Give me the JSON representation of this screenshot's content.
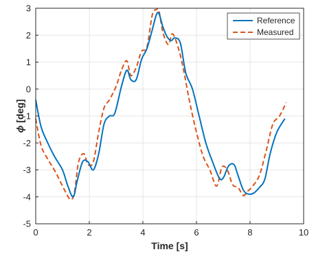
{
  "chart_data": {
    "type": "line",
    "title": "",
    "xlabel": "Time [s]",
    "ylabel_symbol": "ϕ",
    "ylabel_unit": " [deg]",
    "xlim": [
      0,
      10
    ],
    "ylim": [
      -5,
      3
    ],
    "xticks": [
      0,
      2,
      4,
      6,
      8,
      10
    ],
    "yticks": [
      -5,
      -4,
      -3,
      -2,
      -1,
      0,
      1,
      2,
      3
    ],
    "grid": true,
    "legend_position": "top-right",
    "series": [
      {
        "name": "Reference",
        "color": "#0072BD",
        "line_style": "solid",
        "x": [
          0,
          0.2,
          0.45,
          0.7,
          1.0,
          1.2,
          1.4,
          1.55,
          1.75,
          1.95,
          2.15,
          2.35,
          2.55,
          2.75,
          2.95,
          3.2,
          3.4,
          3.55,
          3.75,
          3.95,
          4.15,
          4.35,
          4.5,
          4.6,
          4.75,
          4.9,
          5.05,
          5.2,
          5.4,
          5.6,
          5.85,
          6.1,
          6.35,
          6.6,
          6.85,
          7.0,
          7.2,
          7.4,
          7.55,
          7.75,
          7.95,
          8.15,
          8.35,
          8.55,
          8.75,
          9.0,
          9.3
        ],
        "y": [
          -0.4,
          -1.4,
          -2.0,
          -2.5,
          -3.0,
          -3.6,
          -4.0,
          -3.4,
          -2.7,
          -2.7,
          -3.0,
          -2.4,
          -1.3,
          -1.0,
          -0.9,
          0.1,
          0.7,
          0.35,
          0.35,
          1.1,
          1.5,
          2.2,
          2.75,
          2.8,
          2.3,
          1.95,
          1.8,
          1.9,
          1.7,
          0.6,
          0.0,
          -1.0,
          -2.0,
          -2.7,
          -3.3,
          -3.3,
          -2.85,
          -2.8,
          -3.2,
          -3.75,
          -3.9,
          -3.85,
          -3.65,
          -3.35,
          -2.4,
          -1.6,
          -1.1
        ]
      },
      {
        "name": "Measured",
        "color": "#D95319",
        "line_style": "dashed",
        "x": [
          0,
          0.2,
          0.45,
          0.75,
          1.05,
          1.3,
          1.45,
          1.6,
          1.8,
          1.95,
          2.15,
          2.35,
          2.55,
          2.75,
          3.0,
          3.2,
          3.4,
          3.55,
          3.75,
          3.95,
          4.15,
          4.35,
          4.5,
          4.6,
          4.75,
          4.95,
          5.1,
          5.3,
          5.5,
          5.75,
          6.0,
          6.25,
          6.5,
          6.75,
          6.95,
          7.15,
          7.35,
          7.55,
          7.75,
          7.9,
          8.1,
          8.35,
          8.6,
          8.85,
          9.1,
          9.35
        ],
        "y": [
          -1.1,
          -2.1,
          -2.6,
          -3.1,
          -3.7,
          -4.1,
          -3.8,
          -2.7,
          -2.4,
          -2.8,
          -2.7,
          -1.6,
          -0.7,
          -0.4,
          0.1,
          0.7,
          1.05,
          0.5,
          0.8,
          1.4,
          1.55,
          2.75,
          2.95,
          2.9,
          2.1,
          1.65,
          2.05,
          1.6,
          0.8,
          -0.5,
          -1.6,
          -2.5,
          -3.0,
          -3.6,
          -2.9,
          -3.0,
          -3.55,
          -3.65,
          -3.95,
          -3.8,
          -3.6,
          -3.2,
          -2.3,
          -1.3,
          -1.0,
          -0.5
        ]
      }
    ]
  }
}
